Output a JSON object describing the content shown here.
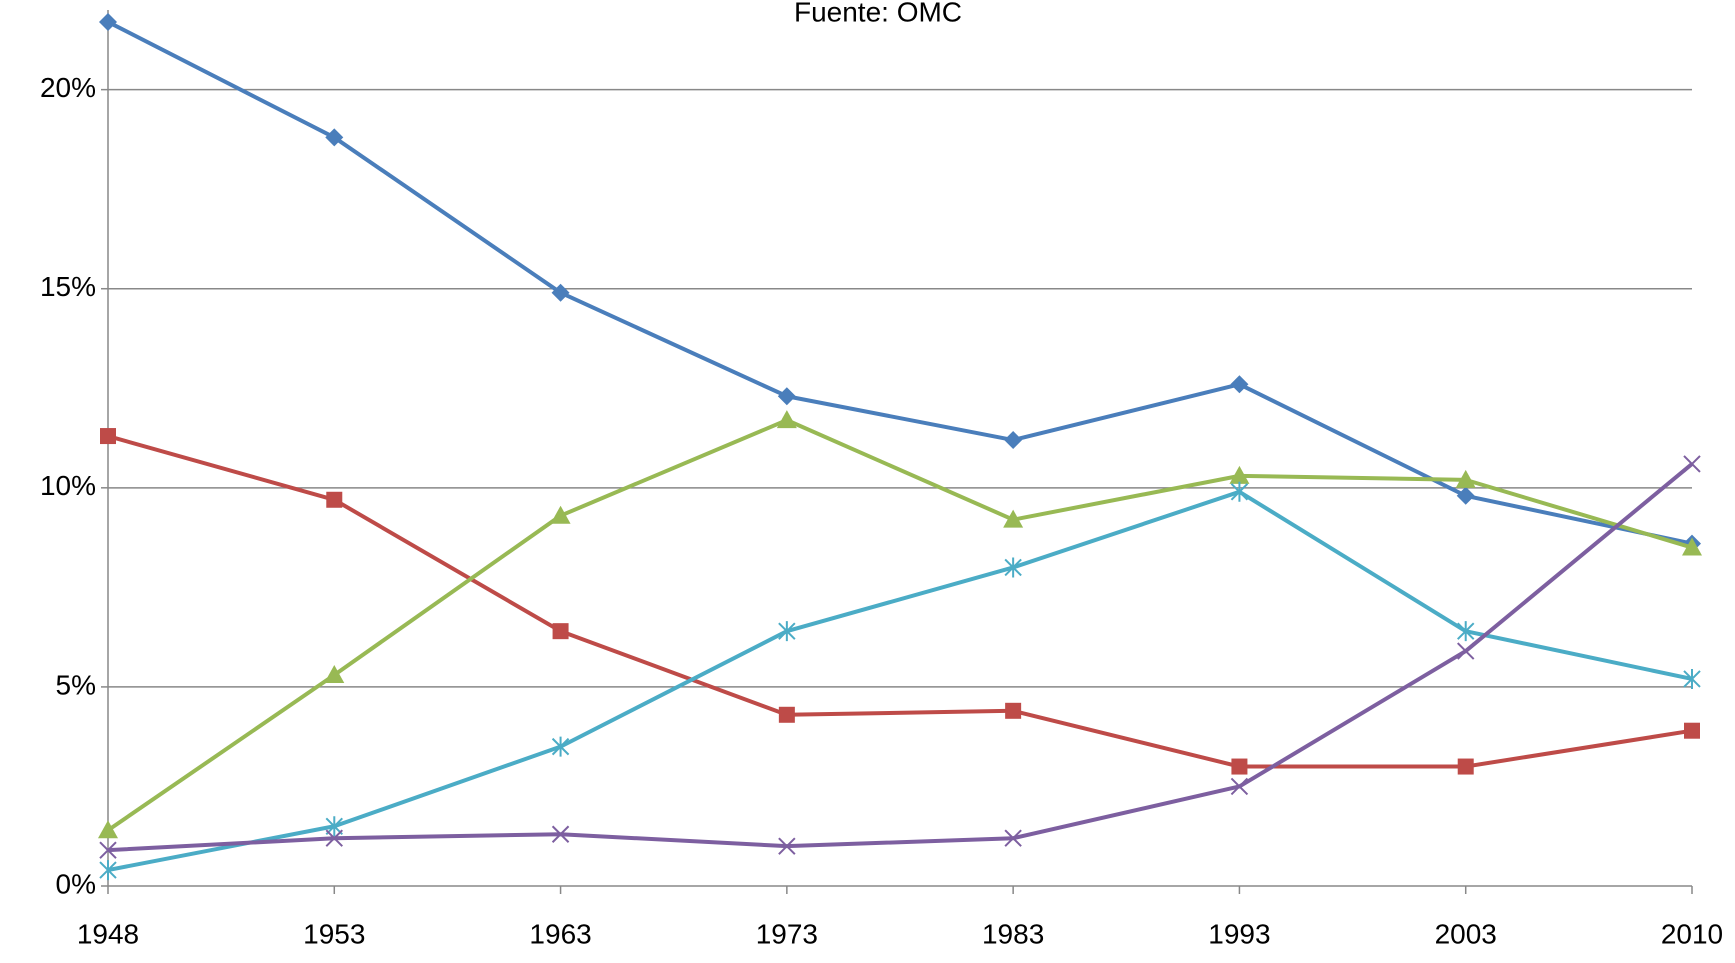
{
  "chart_data": {
    "type": "line",
    "title": "Fuente: OMC",
    "categories": [
      "1948",
      "1953",
      "1963",
      "1973",
      "1983",
      "1993",
      "2003",
      "2010"
    ],
    "series": [
      {
        "color": "#4a7ebb",
        "marker": "diamond",
        "values": [
          21.7,
          18.8,
          14.9,
          12.3,
          11.2,
          12.6,
          9.8,
          8.6
        ]
      },
      {
        "color": "#be4b48",
        "marker": "square",
        "values": [
          11.3,
          9.7,
          6.4,
          4.3,
          4.4,
          3.0,
          3.0,
          3.9
        ]
      },
      {
        "color": "#98b954",
        "marker": "triangle",
        "values": [
          1.4,
          5.3,
          9.3,
          11.7,
          9.2,
          10.3,
          10.2,
          8.5
        ]
      },
      {
        "color": "#4bacc6",
        "marker": "asterisk",
        "values": [
          0.4,
          1.5,
          3.5,
          6.4,
          8.0,
          9.9,
          6.4,
          5.2
        ]
      },
      {
        "color": "#7d5fa0",
        "marker": "x",
        "values": [
          0.9,
          1.2,
          1.3,
          1.0,
          1.2,
          2.5,
          5.9,
          10.6
        ]
      }
    ],
    "ylim": [
      0,
      22
    ],
    "yticks": [
      {
        "value": 0,
        "label": "0%"
      },
      {
        "value": 5,
        "label": "5%"
      },
      {
        "value": 10,
        "label": "10%"
      },
      {
        "value": 15,
        "label": "15%"
      },
      {
        "value": 20,
        "label": "20%"
      }
    ],
    "grid": true
  }
}
